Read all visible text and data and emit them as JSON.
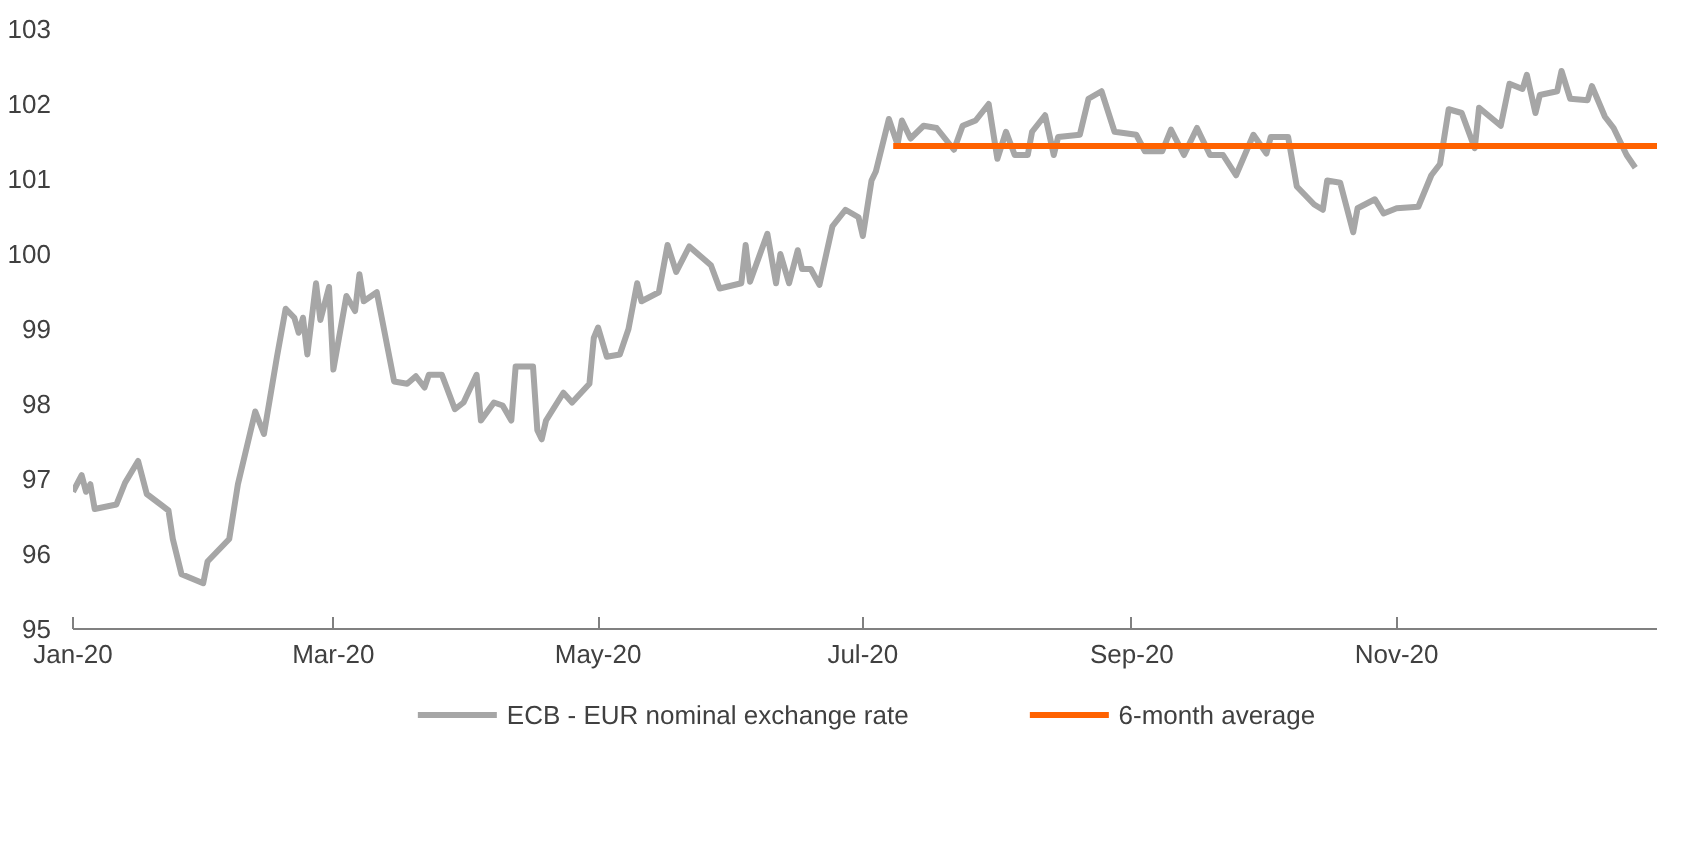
{
  "chart_data": {
    "type": "line",
    "xlim": [
      "2020-01-01",
      "2020-12-31"
    ],
    "xticks": [
      {
        "value": "2020-01-01",
        "label": "Jan-20"
      },
      {
        "value": "2020-03-01",
        "label": "Mar-20"
      },
      {
        "value": "2020-05-01",
        "label": "May-20"
      },
      {
        "value": "2020-07-01",
        "label": "Jul-20"
      },
      {
        "value": "2020-09-01",
        "label": "Sep-20"
      },
      {
        "value": "2020-11-01",
        "label": "Nov-20"
      }
    ],
    "ylim": [
      95,
      103
    ],
    "yticks": [
      95,
      96,
      97,
      98,
      99,
      100,
      101,
      102,
      103
    ],
    "grid": false,
    "legend": "bottom",
    "marker": "none",
    "line_style": "solid",
    "series": [
      {
        "name": "ECB - EUR nominal exchange rate",
        "color": "#a6a6a6",
        "x": [
          "2020-01-01",
          "2020-01-03",
          "2020-01-04",
          "2020-01-05",
          "2020-01-06",
          "2020-01-11",
          "2020-01-13",
          "2020-01-16",
          "2020-01-18",
          "2020-01-23",
          "2020-01-24",
          "2020-01-26",
          "2020-01-31",
          "2020-02-01",
          "2020-02-06",
          "2020-02-08",
          "2020-02-12",
          "2020-02-14",
          "2020-02-17",
          "2020-02-19",
          "2020-02-21",
          "2020-02-22",
          "2020-02-23",
          "2020-02-24",
          "2020-02-26",
          "2020-02-27",
          "2020-02-29",
          "2020-03-01",
          "2020-03-04",
          "2020-03-06",
          "2020-03-07",
          "2020-03-08",
          "2020-03-11",
          "2020-03-15",
          "2020-03-18",
          "2020-03-20",
          "2020-03-22",
          "2020-03-23",
          "2020-03-26",
          "2020-03-29",
          "2020-03-31",
          "2020-04-03",
          "2020-04-04",
          "2020-04-07",
          "2020-04-09",
          "2020-04-11",
          "2020-04-12",
          "2020-04-16",
          "2020-04-17",
          "2020-04-18",
          "2020-04-19",
          "2020-04-23",
          "2020-04-25",
          "2020-04-29",
          "2020-04-30",
          "2020-05-01",
          "2020-05-03",
          "2020-05-06",
          "2020-05-08",
          "2020-05-10",
          "2020-05-11",
          "2020-05-15",
          "2020-05-17",
          "2020-05-19",
          "2020-05-22",
          "2020-05-27",
          "2020-05-29",
          "2020-06-03",
          "2020-06-04",
          "2020-06-05",
          "2020-06-09",
          "2020-06-11",
          "2020-06-12",
          "2020-06-14",
          "2020-06-16",
          "2020-06-17",
          "2020-06-19",
          "2020-06-21",
          "2020-06-24",
          "2020-06-27",
          "2020-06-30",
          "2020-07-01",
          "2020-07-03",
          "2020-07-04",
          "2020-07-07",
          "2020-07-09",
          "2020-07-10",
          "2020-07-12",
          "2020-07-15",
          "2020-07-18",
          "2020-07-22",
          "2020-07-24",
          "2020-07-27",
          "2020-07-30",
          "2020-08-01",
          "2020-08-03",
          "2020-08-05",
          "2020-08-08",
          "2020-08-09",
          "2020-08-12",
          "2020-08-14",
          "2020-08-15",
          "2020-08-20",
          "2020-08-22",
          "2020-08-25",
          "2020-08-28",
          "2020-09-02",
          "2020-09-04",
          "2020-09-08",
          "2020-09-10",
          "2020-09-13",
          "2020-09-16",
          "2020-09-19",
          "2020-09-22",
          "2020-09-25",
          "2020-09-29",
          "2020-10-02",
          "2020-10-03",
          "2020-10-07",
          "2020-10-09",
          "2020-10-13",
          "2020-10-15",
          "2020-10-16",
          "2020-10-19",
          "2020-10-22",
          "2020-10-23",
          "2020-10-27",
          "2020-10-29",
          "2020-11-01",
          "2020-11-06",
          "2020-11-09",
          "2020-11-11",
          "2020-11-13",
          "2020-11-16",
          "2020-11-19",
          "2020-11-20",
          "2020-11-25",
          "2020-11-27",
          "2020-11-30",
          "2020-12-01",
          "2020-12-03",
          "2020-12-04",
          "2020-12-08",
          "2020-12-09",
          "2020-12-11",
          "2020-12-15",
          "2020-12-16",
          "2020-12-19",
          "2020-12-21",
          "2020-12-24",
          "2020-12-26"
        ],
        "values": [
          96.83,
          97.05,
          96.83,
          96.93,
          96.6,
          96.66,
          96.95,
          97.24,
          96.8,
          96.58,
          96.2,
          95.73,
          95.61,
          95.9,
          96.2,
          96.93,
          97.9,
          97.6,
          98.63,
          99.27,
          99.15,
          98.95,
          99.15,
          98.66,
          99.61,
          99.12,
          99.56,
          98.46,
          99.44,
          99.24,
          99.73,
          99.37,
          99.49,
          98.3,
          98.27,
          98.37,
          98.22,
          98.39,
          98.39,
          97.93,
          98.02,
          98.39,
          97.78,
          98.02,
          97.98,
          97.78,
          98.5,
          98.5,
          97.65,
          97.53,
          97.78,
          98.15,
          98.02,
          98.27,
          98.88,
          99.02,
          98.63,
          98.66,
          99.0,
          99.61,
          99.37,
          99.49,
          100.12,
          99.76,
          100.1,
          99.85,
          99.54,
          99.61,
          100.12,
          99.63,
          100.27,
          99.61,
          100.0,
          99.61,
          100.05,
          99.8,
          99.8,
          99.59,
          100.37,
          100.59,
          100.49,
          100.24,
          100.98,
          101.1,
          101.8,
          101.46,
          101.78,
          101.54,
          101.71,
          101.68,
          101.39,
          101.71,
          101.78,
          102.0,
          101.27,
          101.63,
          101.32,
          101.32,
          101.63,
          101.85,
          101.32,
          101.56,
          101.59,
          102.07,
          102.17,
          101.63,
          101.59,
          101.37,
          101.37,
          101.66,
          101.32,
          101.68,
          101.32,
          101.32,
          101.05,
          101.59,
          101.34,
          101.56,
          101.56,
          100.9,
          100.66,
          100.59,
          100.98,
          100.95,
          100.29,
          100.61,
          100.73,
          100.54,
          100.61,
          100.63,
          101.05,
          101.2,
          101.93,
          101.88,
          101.41,
          101.95,
          101.71,
          102.27,
          102.2,
          102.39,
          101.88,
          102.12,
          102.17,
          102.44,
          102.07,
          102.05,
          102.24,
          101.83,
          101.68,
          101.32,
          101.15
        ]
      },
      {
        "name": "6-month average",
        "color": "#ff6200",
        "x": [
          "2020-07-08",
          "2020-12-31"
        ],
        "values": [
          101.44,
          101.44
        ]
      }
    ]
  }
}
